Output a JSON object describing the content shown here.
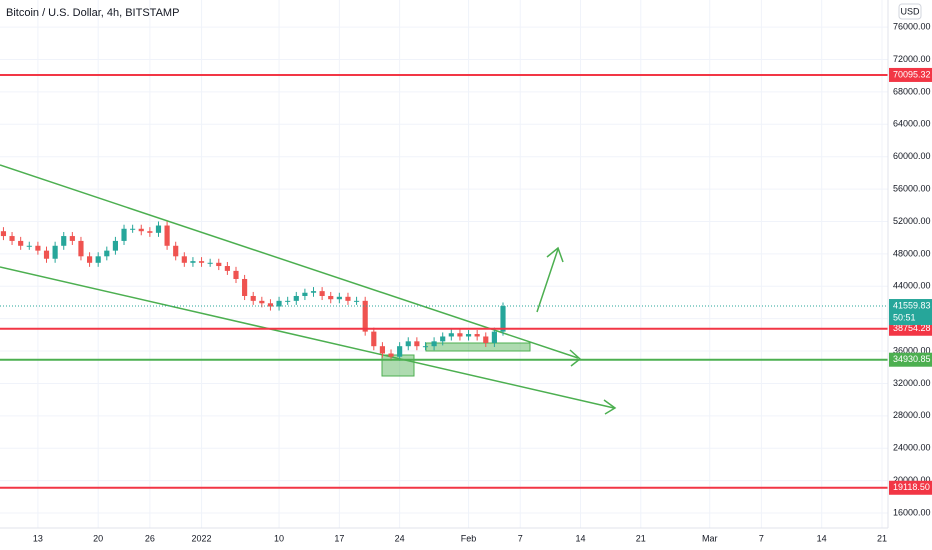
{
  "chart_data": {
    "type": "candlestick",
    "title": "Bitcoin / U.S. Dollar, 4h, BITSTAMP",
    "y_unit": "USD",
    "up_color": "#26a69a",
    "down_color": "#ef5350",
    "grid": true,
    "xlim": [
      8.6,
      111.7
    ],
    "ylim": [
      14150,
      79350
    ],
    "xticks": [
      {
        "value": 13,
        "label": "13"
      },
      {
        "value": 20,
        "label": "20"
      },
      {
        "value": 26,
        "label": "26"
      },
      {
        "value": 32,
        "label": "2022"
      },
      {
        "value": 41,
        "label": "10"
      },
      {
        "value": 48,
        "label": "17"
      },
      {
        "value": 55,
        "label": "24"
      },
      {
        "value": 63,
        "label": "Feb"
      },
      {
        "value": 69,
        "label": "7"
      },
      {
        "value": 76,
        "label": "14"
      },
      {
        "value": 83,
        "label": "21"
      },
      {
        "value": 91,
        "label": "Mar"
      },
      {
        "value": 97,
        "label": "7"
      },
      {
        "value": 104,
        "label": "14"
      },
      {
        "value": 111,
        "label": "21"
      }
    ],
    "yticks": [
      {
        "value": 16000,
        "label": "16000.00"
      },
      {
        "value": 20000,
        "label": "20000.00"
      },
      {
        "value": 24000,
        "label": "24000.00"
      },
      {
        "value": 28000,
        "label": "28000.00"
      },
      {
        "value": 32000,
        "label": "32000.00"
      },
      {
        "value": 36000,
        "label": "36000.00"
      },
      {
        "value": 40000,
        "label": "40000.00"
      },
      {
        "value": 44000,
        "label": "44000.00"
      },
      {
        "value": 48000,
        "label": "48000.00"
      },
      {
        "value": 52000,
        "label": "52000.00"
      },
      {
        "value": 56000,
        "label": "56000.00"
      },
      {
        "value": 60000,
        "label": "60000.00"
      },
      {
        "value": 64000,
        "label": "64000.00"
      },
      {
        "value": 68000,
        "label": "68000.00"
      },
      {
        "value": 72000,
        "label": "72000.00"
      },
      {
        "value": 76000,
        "label": "76000.00"
      }
    ],
    "x": [
      9,
      10,
      11,
      12,
      13,
      14,
      15,
      16,
      17,
      18,
      19,
      20,
      21,
      22,
      23,
      24,
      25,
      26,
      27,
      28,
      29,
      30,
      31,
      32,
      33,
      34,
      35,
      36,
      37,
      38,
      39,
      40,
      41,
      42,
      43,
      44,
      45,
      46,
      47,
      48,
      49,
      50,
      51,
      52,
      53,
      54,
      55,
      56,
      57,
      58,
      59,
      60,
      61,
      62,
      63,
      64,
      65,
      66,
      67
    ],
    "open": [
      50800,
      50200,
      49600,
      49000,
      49000,
      48400,
      47400,
      49000,
      50200,
      49600,
      47700,
      46900,
      47700,
      48400,
      49600,
      51100,
      51100,
      50800,
      50600,
      51500,
      49000,
      47700,
      46900,
      47100,
      46900,
      46900,
      46500,
      45900,
      44900,
      42800,
      42200,
      41900,
      41500,
      42200,
      42200,
      42800,
      43200,
      43400,
      42800,
      42400,
      42700,
      42200,
      42200,
      38400,
      36600,
      35700,
      35300,
      36600,
      37200,
      36600,
      36600,
      37200,
      37800,
      38200,
      37800,
      38100,
      37800,
      37000,
      38400
    ],
    "high": [
      51300,
      50700,
      50100,
      49500,
      49500,
      48900,
      49500,
      50700,
      50700,
      50100,
      48200,
      48200,
      48900,
      50100,
      51600,
      51600,
      51600,
      51300,
      52000,
      52000,
      49500,
      48200,
      47600,
      47600,
      47400,
      47400,
      47000,
      46400,
      45400,
      43300,
      42700,
      42400,
      42700,
      42700,
      43300,
      43700,
      43900,
      43900,
      43300,
      43200,
      43200,
      42700,
      42700,
      38900,
      37100,
      36200,
      37100,
      37700,
      37700,
      37100,
      37700,
      38300,
      38700,
      38700,
      38600,
      38600,
      38300,
      38900,
      42000
    ],
    "low": [
      49700,
      49100,
      48500,
      48500,
      47900,
      46900,
      46900,
      48500,
      49100,
      47200,
      46400,
      46400,
      47200,
      47900,
      49100,
      50600,
      50300,
      50100,
      50100,
      48500,
      47200,
      46400,
      46400,
      46400,
      46400,
      46000,
      45400,
      44400,
      42300,
      41700,
      41400,
      41000,
      41000,
      41700,
      41700,
      42300,
      42700,
      42300,
      41900,
      41900,
      41700,
      41700,
      37900,
      36100,
      35200,
      34800,
      34800,
      36100,
      36100,
      36100,
      36100,
      36700,
      37300,
      37300,
      37300,
      37300,
      36500,
      36500,
      37900
    ],
    "close": [
      50200,
      49600,
      49000,
      49000,
      48400,
      47400,
      49000,
      50200,
      49600,
      47700,
      46900,
      47700,
      48400,
      49600,
      51100,
      51100,
      50800,
      50600,
      51500,
      49000,
      47700,
      46900,
      47100,
      46900,
      46900,
      46500,
      45900,
      44900,
      42800,
      42200,
      41900,
      41500,
      42200,
      42200,
      42800,
      43200,
      43400,
      42800,
      42400,
      42700,
      42200,
      42200,
      38400,
      36600,
      35700,
      35300,
      36600,
      37200,
      36600,
      36600,
      37200,
      37800,
      38200,
      37800,
      38100,
      37800,
      37000,
      38400,
      41560
    ],
    "levels": [
      {
        "value": 70095.32,
        "label": "70095.32",
        "color": "#f23645"
      },
      {
        "value": 38754.28,
        "label": "38754.28",
        "color": "#f23645"
      },
      {
        "value": 34930.85,
        "label": "34930.85",
        "color": "#4caf50"
      },
      {
        "value": 19118.5,
        "label": "19118.50",
        "color": "#f23645"
      }
    ],
    "last_price": {
      "value": 41559.83,
      "label": "41559.83",
      "countdown": "50:51",
      "color": "#26a69a"
    }
  }
}
